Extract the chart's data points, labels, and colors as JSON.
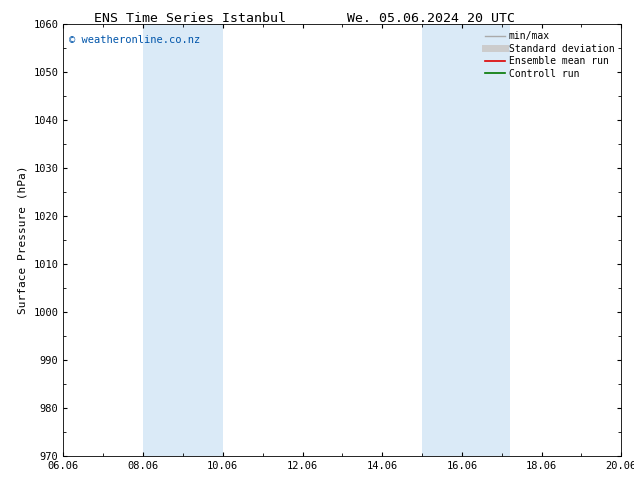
{
  "title_left": "ENS Time Series Istanbul",
  "title_right": "We. 05.06.2024 20 UTC",
  "ylabel": "Surface Pressure (hPa)",
  "ylim": [
    970,
    1060
  ],
  "yticks": [
    970,
    980,
    990,
    1000,
    1010,
    1020,
    1030,
    1040,
    1050,
    1060
  ],
  "xlim_num": [
    0,
    14
  ],
  "xtick_labels": [
    "06.06",
    "08.06",
    "10.06",
    "12.06",
    "14.06",
    "16.06",
    "18.06",
    "20.06"
  ],
  "xtick_positions": [
    0,
    2,
    4,
    6,
    8,
    10,
    12,
    14
  ],
  "shaded_bands": [
    {
      "xmin": 2.0,
      "xmax": 4.0
    },
    {
      "xmin": 9.0,
      "xmax": 11.2
    }
  ],
  "shade_color": "#daeaf7",
  "watermark": "© weatheronline.co.nz",
  "watermark_color": "#0055aa",
  "legend_items": [
    {
      "label": "min/max",
      "color": "#aaaaaa",
      "lw": 1.0
    },
    {
      "label": "Standard deviation",
      "color": "#cccccc",
      "lw": 5.0
    },
    {
      "label": "Ensemble mean run",
      "color": "#dd0000",
      "lw": 1.2
    },
    {
      "label": "Controll run",
      "color": "#007700",
      "lw": 1.2
    }
  ],
  "bg_color": "#ffffff",
  "title_fontsize": 9.5,
  "tick_fontsize": 7.5,
  "ylabel_fontsize": 8,
  "legend_fontsize": 7,
  "watermark_fontsize": 7.5
}
